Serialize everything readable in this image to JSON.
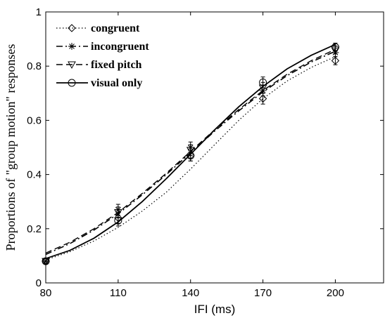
{
  "chart_data": {
    "type": "line",
    "xlabel": "IFI (ms)",
    "ylabel": "Proportions of \"group motion\" responses",
    "xlim": [
      80,
      220
    ],
    "ylim": [
      0,
      1
    ],
    "xticks": [
      "80",
      "110",
      "140",
      "170",
      "200"
    ],
    "yticks": [
      "0",
      "0.2",
      "0.4",
      "0.6",
      "0.8",
      "1"
    ],
    "grid": false,
    "legend_position": "top-left",
    "x": [
      80,
      110,
      140,
      170,
      200
    ],
    "series": [
      {
        "name": "congruent",
        "marker": "diamond",
        "dash": "dotted",
        "points": [
          0.08,
          0.24,
          0.47,
          0.68,
          0.82
        ],
        "errors": [
          0.01,
          0.02,
          0.02,
          0.02,
          0.015
        ],
        "fit": [
          [
            80,
            0.085
          ],
          [
            90,
            0.115
          ],
          [
            100,
            0.155
          ],
          [
            110,
            0.205
          ],
          [
            120,
            0.265
          ],
          [
            130,
            0.335
          ],
          [
            140,
            0.42
          ],
          [
            150,
            0.51
          ],
          [
            160,
            0.6
          ],
          [
            170,
            0.68
          ],
          [
            180,
            0.745
          ],
          [
            190,
            0.795
          ],
          [
            200,
            0.835
          ]
        ]
      },
      {
        "name": "incongruent",
        "marker": "asterisk",
        "dash": "dashdot",
        "points": [
          0.08,
          0.27,
          0.5,
          0.71,
          0.85
        ],
        "errors": [
          0.01,
          0.02,
          0.02,
          0.02,
          0.015
        ],
        "fit": [
          [
            80,
            0.105
          ],
          [
            90,
            0.145
          ],
          [
            100,
            0.195
          ],
          [
            110,
            0.255
          ],
          [
            120,
            0.325
          ],
          [
            130,
            0.4
          ],
          [
            140,
            0.48
          ],
          [
            150,
            0.56
          ],
          [
            160,
            0.635
          ],
          [
            170,
            0.705
          ],
          [
            180,
            0.765
          ],
          [
            190,
            0.815
          ],
          [
            200,
            0.855
          ]
        ]
      },
      {
        "name": "fixed pitch",
        "marker": "triangle-down",
        "dash": "dashed",
        "points": [
          0.08,
          0.26,
          0.49,
          0.72,
          0.86
        ],
        "errors": [
          0.01,
          0.02,
          0.02,
          0.02,
          0.015
        ],
        "fit": [
          [
            80,
            0.11
          ],
          [
            90,
            0.15
          ],
          [
            100,
            0.2
          ],
          [
            110,
            0.26
          ],
          [
            120,
            0.33
          ],
          [
            130,
            0.405
          ],
          [
            140,
            0.485
          ],
          [
            150,
            0.565
          ],
          [
            160,
            0.64
          ],
          [
            170,
            0.71
          ],
          [
            180,
            0.77
          ],
          [
            190,
            0.82
          ],
          [
            200,
            0.862
          ]
        ]
      },
      {
        "name": "visual only",
        "marker": "circle",
        "dash": "solid",
        "points": [
          0.08,
          0.23,
          0.47,
          0.74,
          0.87
        ],
        "errors": [
          0.01,
          0.02,
          0.02,
          0.02,
          0.015
        ],
        "fit": [
          [
            80,
            0.09
          ],
          [
            90,
            0.12
          ],
          [
            100,
            0.165
          ],
          [
            110,
            0.225
          ],
          [
            120,
            0.3
          ],
          [
            130,
            0.385
          ],
          [
            140,
            0.475
          ],
          [
            150,
            0.565
          ],
          [
            160,
            0.65
          ],
          [
            170,
            0.725
          ],
          [
            180,
            0.79
          ],
          [
            190,
            0.84
          ],
          [
            200,
            0.88
          ]
        ]
      }
    ]
  }
}
